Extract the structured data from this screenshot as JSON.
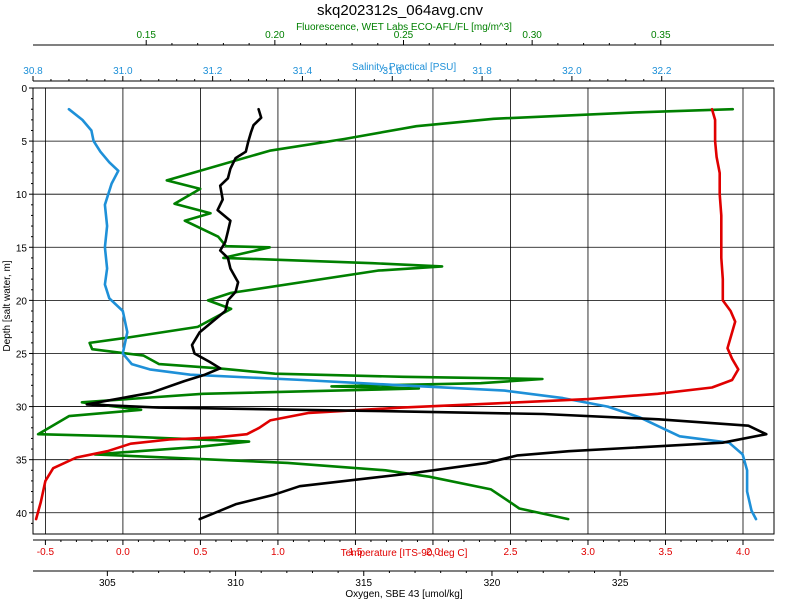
{
  "chart_data": {
    "type": "line",
    "title": "skq202312s_064avg.cnv",
    "grid": true,
    "y_axis": {
      "label": "Depth [salt water, m]",
      "range": [
        0,
        42
      ],
      "ticks": [
        0,
        5,
        10,
        15,
        20,
        25,
        30,
        35,
        40
      ],
      "inverted": true
    },
    "x_axes": [
      {
        "id": "fluorescence",
        "label": "Fluorescence, WET Labs ECO-AFL/FL [mg/m^3]",
        "position": "top-outer",
        "color": "#008000",
        "range": [
          0.106,
          0.394
        ],
        "ticks": [
          0.15,
          0.2,
          0.25,
          0.3,
          0.35
        ],
        "tick_labels": [
          "0.15",
          "0.20",
          "0.25",
          "0.30",
          "0.35"
        ]
      },
      {
        "id": "salinity",
        "label": "Salinity, Practical [PSU]",
        "position": "top-inner",
        "color": "#1E90D8",
        "range": [
          30.8,
          32.45
        ],
        "ticks": [
          30.8,
          31.0,
          31.2,
          31.4,
          31.6,
          31.8,
          32.0,
          32.2
        ],
        "tick_labels": [
          "30.8",
          "31.0",
          "31.2",
          "31.4",
          "31.6",
          "31.8",
          "32.0",
          "32.2"
        ]
      },
      {
        "id": "temperature",
        "label": "Temperature [ITS-90, deg C]",
        "position": "bottom-inner",
        "color": "#E00000",
        "range": [
          -0.58,
          4.2
        ],
        "ticks": [
          -0.5,
          0.0,
          0.5,
          1.0,
          1.5,
          2.0,
          2.5,
          3.0,
          3.5,
          4.0
        ],
        "tick_labels": [
          "-0.5",
          "0.0",
          "0.5",
          "1.0",
          "1.5",
          "2.0",
          "2.5",
          "3.0",
          "3.5",
          "4.0"
        ]
      },
      {
        "id": "oxygen",
        "label": "Oxygen, SBE 43 [umol/kg]",
        "position": "bottom-outer",
        "color": "#000000",
        "range": [
          302.1,
          331.0
        ],
        "ticks": [
          305,
          310,
          315,
          320,
          325
        ],
        "tick_labels": [
          "305",
          "310",
          "315",
          "320",
          "325"
        ]
      }
    ],
    "series": [
      {
        "axis": "fluorescence",
        "color": "#008000",
        "points": [
          [
            0.378,
            2.0
          ],
          [
            0.34,
            2.3
          ],
          [
            0.285,
            2.9
          ],
          [
            0.255,
            3.6
          ],
          [
            0.227,
            4.8
          ],
          [
            0.198,
            5.9
          ],
          [
            0.171,
            7.8
          ],
          [
            0.158,
            8.7
          ],
          [
            0.171,
            9.5
          ],
          [
            0.161,
            10.9
          ],
          [
            0.175,
            11.8
          ],
          [
            0.165,
            12.5
          ],
          [
            0.178,
            14.0
          ],
          [
            0.181,
            14.9
          ],
          [
            0.198,
            15.0
          ],
          [
            0.18,
            16.0
          ],
          [
            0.238,
            16.5
          ],
          [
            0.265,
            16.8
          ],
          [
            0.24,
            17.2
          ],
          [
            0.183,
            19.3
          ],
          [
            0.174,
            20.0
          ],
          [
            0.183,
            20.8
          ],
          [
            0.17,
            22.5
          ],
          [
            0.143,
            23.5
          ],
          [
            0.128,
            24.0
          ],
          [
            0.129,
            24.6
          ],
          [
            0.149,
            25.2
          ],
          [
            0.155,
            26.0
          ],
          [
            0.178,
            26.4
          ],
          [
            0.2,
            26.9
          ],
          [
            0.25,
            27.2
          ],
          [
            0.304,
            27.4
          ],
          [
            0.28,
            27.8
          ],
          [
            0.222,
            28.1
          ],
          [
            0.256,
            28.3
          ],
          [
            0.172,
            28.8
          ],
          [
            0.125,
            29.6
          ],
          [
            0.148,
            30.3
          ],
          [
            0.12,
            30.9
          ],
          [
            0.108,
            32.6
          ],
          [
            0.14,
            32.8
          ],
          [
            0.19,
            33.3
          ],
          [
            0.17,
            33.8
          ],
          [
            0.13,
            34.5
          ],
          [
            0.205,
            35.3
          ],
          [
            0.243,
            36.0
          ],
          [
            0.26,
            36.6
          ],
          [
            0.284,
            37.8
          ],
          [
            0.292,
            39.1
          ],
          [
            0.295,
            39.6
          ],
          [
            0.314,
            40.6
          ]
        ]
      },
      {
        "axis": "salinity",
        "color": "#1E90D8",
        "points": [
          [
            30.88,
            2.0
          ],
          [
            30.91,
            3.0
          ],
          [
            30.93,
            4.0
          ],
          [
            30.935,
            5.0
          ],
          [
            30.95,
            6.0
          ],
          [
            30.97,
            7.0
          ],
          [
            30.99,
            7.8
          ],
          [
            30.975,
            9.0
          ],
          [
            30.96,
            11.0
          ],
          [
            30.965,
            13.0
          ],
          [
            30.96,
            15.0
          ],
          [
            30.965,
            17.0
          ],
          [
            30.96,
            18.5
          ],
          [
            30.97,
            19.8
          ],
          [
            31.0,
            21.0
          ],
          [
            31.01,
            23.0
          ],
          [
            31.0,
            25.0
          ],
          [
            31.02,
            26.0
          ],
          [
            31.06,
            26.5
          ],
          [
            31.15,
            27.0
          ],
          [
            31.4,
            27.5
          ],
          [
            31.62,
            28.0
          ],
          [
            31.85,
            28.5
          ],
          [
            31.98,
            29.2
          ],
          [
            32.08,
            30.0
          ],
          [
            32.15,
            31.0
          ],
          [
            32.2,
            32.0
          ],
          [
            32.24,
            32.8
          ],
          [
            32.35,
            33.4
          ],
          [
            32.38,
            34.5
          ],
          [
            32.39,
            36.0
          ],
          [
            32.39,
            38.0
          ],
          [
            32.4,
            39.8
          ],
          [
            32.41,
            40.6
          ]
        ]
      },
      {
        "axis": "temperature",
        "color": "#E00000",
        "points": [
          [
            3.8,
            2.0
          ],
          [
            3.82,
            3.0
          ],
          [
            3.82,
            5.0
          ],
          [
            3.83,
            6.5
          ],
          [
            3.85,
            8.0
          ],
          [
            3.85,
            10.0
          ],
          [
            3.86,
            12.0
          ],
          [
            3.86,
            14.0
          ],
          [
            3.86,
            16.0
          ],
          [
            3.87,
            18.0
          ],
          [
            3.87,
            20.0
          ],
          [
            3.92,
            21.0
          ],
          [
            3.95,
            22.0
          ],
          [
            3.92,
            23.5
          ],
          [
            3.9,
            24.5
          ],
          [
            3.93,
            25.5
          ],
          [
            3.97,
            26.5
          ],
          [
            3.93,
            27.5
          ],
          [
            3.8,
            28.2
          ],
          [
            3.45,
            28.8
          ],
          [
            3.0,
            29.3
          ],
          [
            2.4,
            29.7
          ],
          [
            1.8,
            30.1
          ],
          [
            1.2,
            30.6
          ],
          [
            0.95,
            31.3
          ],
          [
            0.88,
            32.0
          ],
          [
            0.8,
            32.6
          ],
          [
            0.6,
            32.9
          ],
          [
            0.3,
            33.1
          ],
          [
            0.05,
            33.5
          ],
          [
            -0.1,
            34.2
          ],
          [
            -0.3,
            34.8
          ],
          [
            -0.45,
            35.8
          ],
          [
            -0.5,
            37.0
          ],
          [
            -0.53,
            39.0
          ],
          [
            -0.56,
            40.6
          ]
        ]
      },
      {
        "axis": "oxygen",
        "color": "#000000",
        "points": [
          [
            310.9,
            2.0
          ],
          [
            311.0,
            2.8
          ],
          [
            310.7,
            3.5
          ],
          [
            310.6,
            4.2
          ],
          [
            310.5,
            5.0
          ],
          [
            310.4,
            6.0
          ],
          [
            310.0,
            6.6
          ],
          [
            309.8,
            7.6
          ],
          [
            309.7,
            8.5
          ],
          [
            309.4,
            9.2
          ],
          [
            309.5,
            10.5
          ],
          [
            309.3,
            11.5
          ],
          [
            309.8,
            12.5
          ],
          [
            309.7,
            13.5
          ],
          [
            309.6,
            14.5
          ],
          [
            309.4,
            15.3
          ],
          [
            309.7,
            16.0
          ],
          [
            309.8,
            17.0
          ],
          [
            310.1,
            18.3
          ],
          [
            310.0,
            19.2
          ],
          [
            309.7,
            20.0
          ],
          [
            309.6,
            21.0
          ],
          [
            309.1,
            22.0
          ],
          [
            308.6,
            23.0
          ],
          [
            308.3,
            24.2
          ],
          [
            308.4,
            25.0
          ],
          [
            309.0,
            25.8
          ],
          [
            309.4,
            26.4
          ],
          [
            308.8,
            27.0
          ],
          [
            308.0,
            27.6
          ],
          [
            306.7,
            28.7
          ],
          [
            304.2,
            29.8
          ],
          [
            307.0,
            30.1
          ],
          [
            315.0,
            30.4
          ],
          [
            322.0,
            30.7
          ],
          [
            326.5,
            31.2
          ],
          [
            330.0,
            31.8
          ],
          [
            330.7,
            32.6
          ],
          [
            329.0,
            33.4
          ],
          [
            323.0,
            34.2
          ],
          [
            321.0,
            34.6
          ],
          [
            319.8,
            35.3
          ],
          [
            316.8,
            36.3
          ],
          [
            312.5,
            37.5
          ],
          [
            311.5,
            38.3
          ],
          [
            310.0,
            39.2
          ],
          [
            309.2,
            40.0
          ],
          [
            308.6,
            40.6
          ]
        ]
      }
    ]
  }
}
